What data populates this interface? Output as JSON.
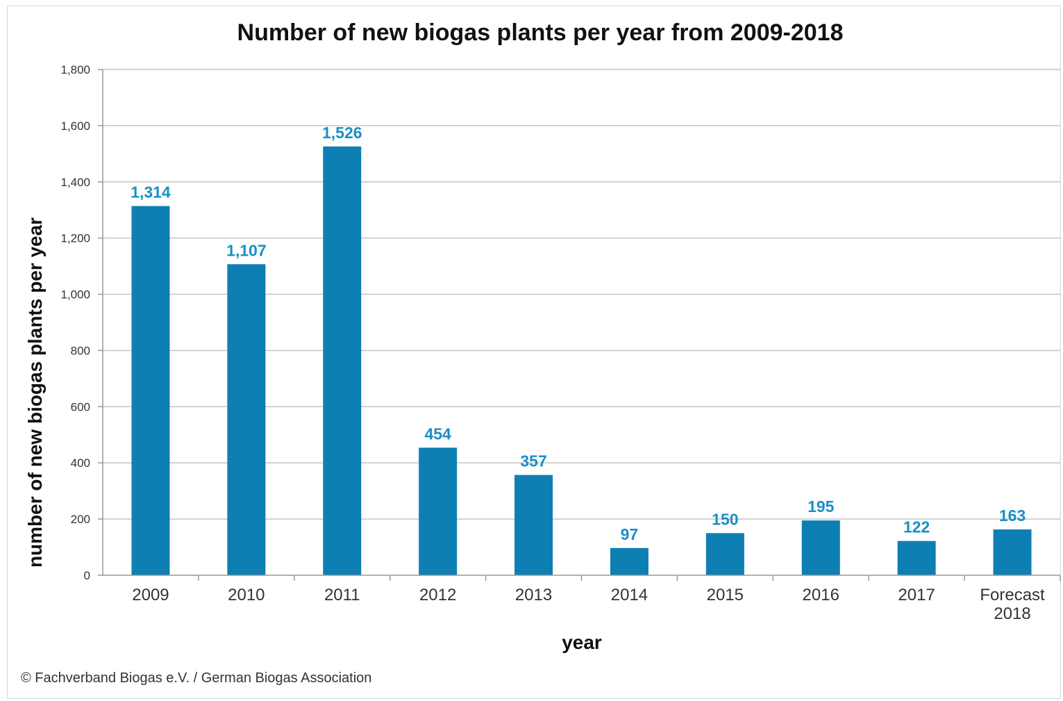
{
  "chart_data": {
    "type": "bar",
    "title": "Number of new biogas plants per year from 2009-2018",
    "xlabel": "year",
    "ylabel": "number of new biogas plants per year",
    "categories": [
      [
        "2009"
      ],
      [
        "2010"
      ],
      [
        "2011"
      ],
      [
        "2012"
      ],
      [
        "2013"
      ],
      [
        "2014"
      ],
      [
        "2015"
      ],
      [
        "2016"
      ],
      [
        "2017"
      ],
      [
        "Forecast",
        "2018"
      ]
    ],
    "values": [
      1314,
      1107,
      1526,
      454,
      357,
      97,
      150,
      195,
      122,
      163
    ],
    "value_labels": [
      "1,314",
      "1,107",
      "1,526",
      "454",
      "357",
      "97",
      "150",
      "195",
      "122",
      "163"
    ],
    "ylim": [
      0,
      1800
    ],
    "yticks": [
      0,
      200,
      400,
      600,
      800,
      1000,
      1200,
      1400,
      1600,
      1800
    ],
    "ytick_labels": [
      "0",
      "200",
      "400",
      "600",
      "800",
      "1,000",
      "1,200",
      "1,400",
      "1,600",
      "1,800"
    ],
    "grid": true,
    "legend": "none",
    "bar_color": "#0e7fb3",
    "label_color": "#1a8fc4"
  },
  "source_note": "© Fachverband Biogas e.V. / German Biogas Association"
}
